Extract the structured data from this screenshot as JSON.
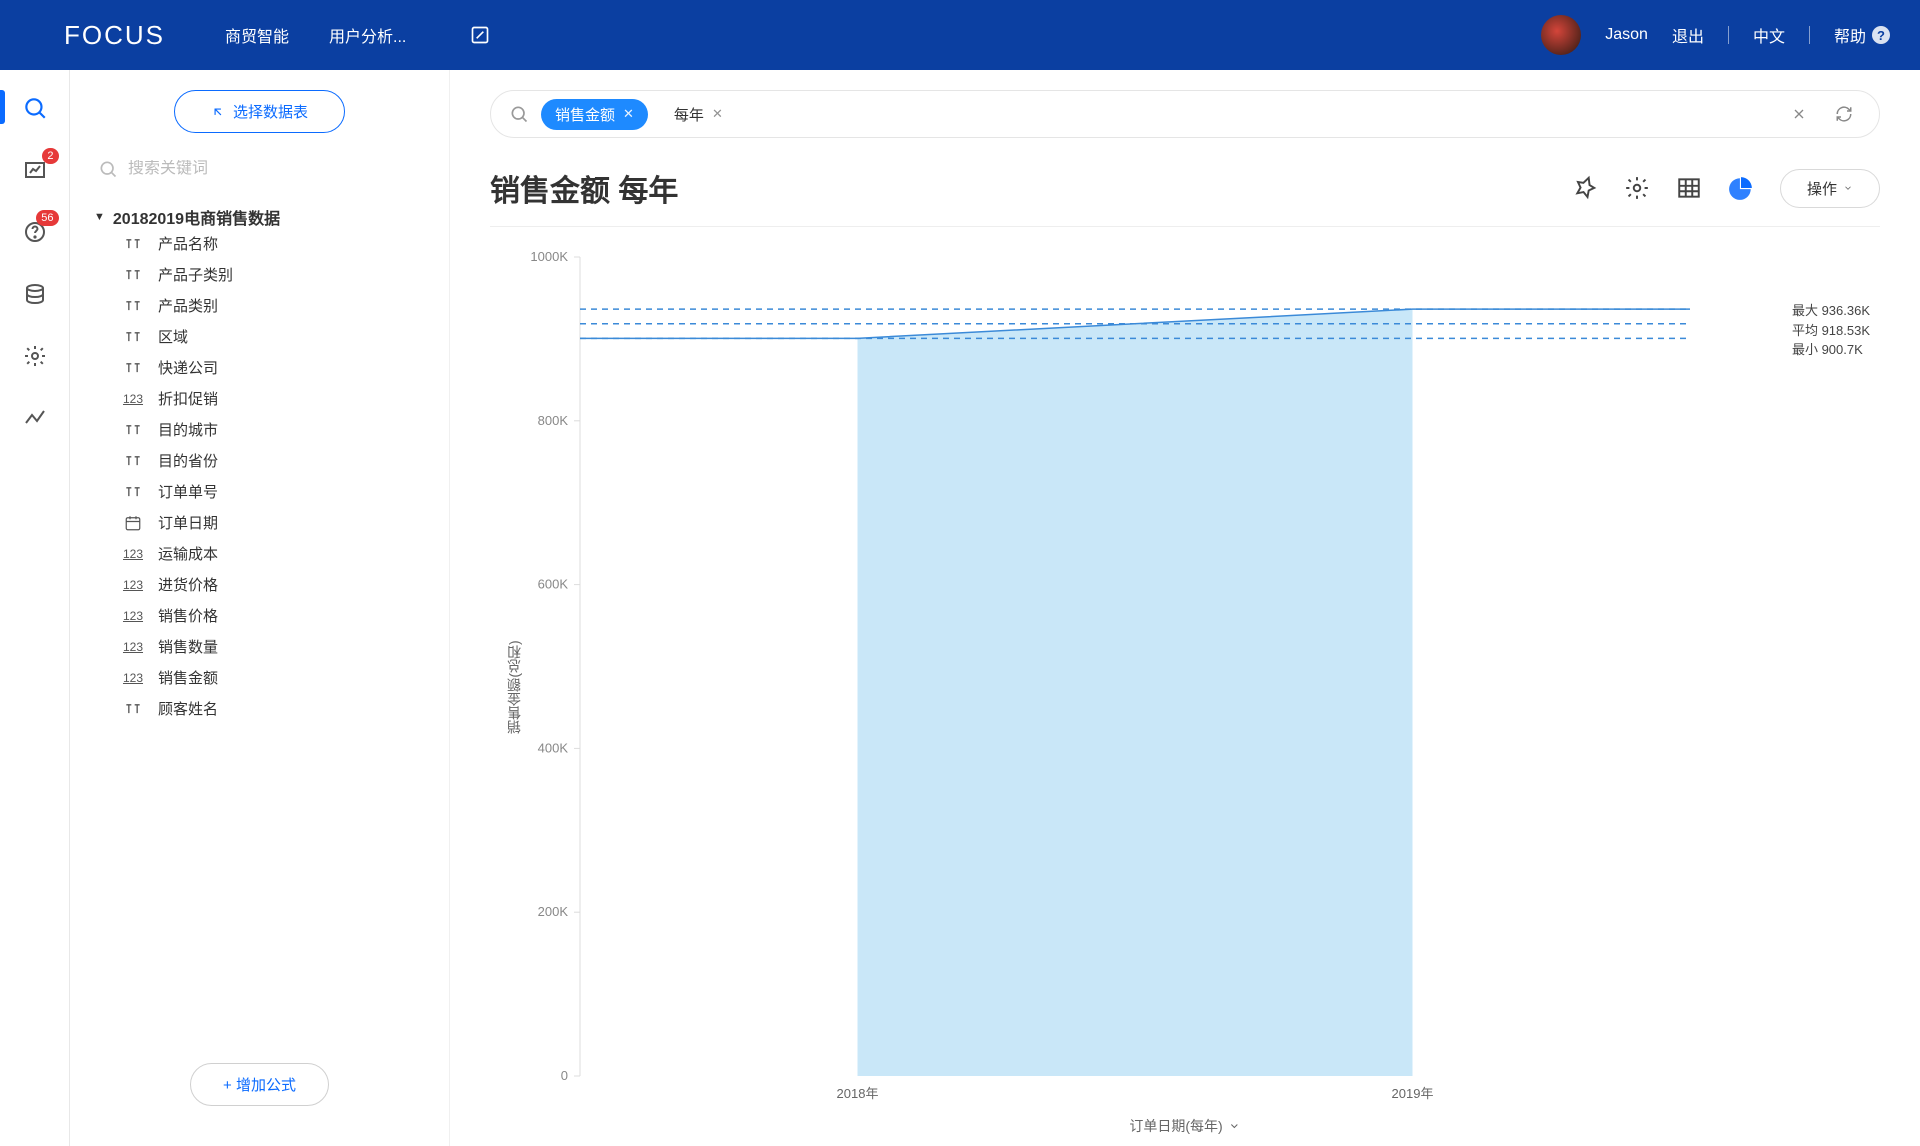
{
  "header": {
    "logo_text": "FOCUS",
    "nav": [
      "商贸智能",
      "用户分析..."
    ],
    "user_name": "Jason",
    "logout": "退出",
    "language": "中文",
    "help": "帮助"
  },
  "rail": {
    "badges": {
      "chart": "2",
      "help": "56"
    }
  },
  "panel": {
    "select_table_btn": "选择数据表",
    "search_placeholder": "搜索关键词",
    "dataset": "20182019电商销售数据",
    "fields": [
      {
        "type": "T",
        "label": "产品名称"
      },
      {
        "type": "T",
        "label": "产品子类别"
      },
      {
        "type": "T",
        "label": "产品类别"
      },
      {
        "type": "T",
        "label": "区域"
      },
      {
        "type": "T",
        "label": "快递公司"
      },
      {
        "type": "123",
        "label": "折扣促销"
      },
      {
        "type": "T",
        "label": "目的城市"
      },
      {
        "type": "T",
        "label": "目的省份"
      },
      {
        "type": "T",
        "label": "订单单号"
      },
      {
        "type": "cal",
        "label": "订单日期"
      },
      {
        "type": "123",
        "label": "运输成本"
      },
      {
        "type": "123",
        "label": "进货价格"
      },
      {
        "type": "123",
        "label": "销售价格"
      },
      {
        "type": "123",
        "label": "销售数量"
      },
      {
        "type": "123",
        "label": "销售金额"
      },
      {
        "type": "T",
        "label": "顾客姓名"
      }
    ],
    "add_formula_btn": "+ 增加公式"
  },
  "query": {
    "pills": [
      {
        "label": "销售金额",
        "style": "blue"
      },
      {
        "label": "每年",
        "style": "plain"
      }
    ]
  },
  "chart": {
    "title": "销售金额 每年",
    "action_btn": "操作",
    "type": "area",
    "y_label": "销售金额(总和)",
    "x_label": "订单日期(每年)",
    "categories": [
      "2018年",
      "2019年"
    ],
    "values": [
      900700,
      936360
    ],
    "ylim": [
      0,
      1000000
    ],
    "ytick_step": 200000,
    "ytick_labels": [
      "0",
      "200K",
      "400K",
      "600K",
      "800K",
      "1000K"
    ],
    "line_color": "#3b8ad8",
    "fill_color": "#bfe3f7",
    "fill_opacity": 0.85,
    "ref_line_color": "#3b8ad8",
    "ref_dash": "6,5",
    "reference_lines": [
      {
        "label": "最大 936.36K",
        "value": 936360
      },
      {
        "label": "平均 918.53K",
        "value": 918530
      },
      {
        "label": "最小 900.7K",
        "value": 900700
      }
    ],
    "background_color": "#ffffff",
    "axis_color": "#dcdcdc",
    "tick_font_color": "#888888",
    "tick_font_size": 13
  }
}
